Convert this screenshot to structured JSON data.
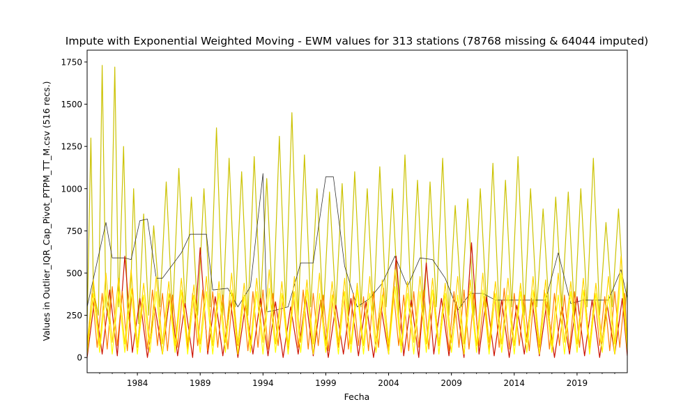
{
  "chart_data": {
    "type": "line",
    "title": "Impute with Exponential Weighted Moving - EWM values for 313 stations (78768 missing & 64044 imputed)",
    "xlabel": "Fecha",
    "ylabel": "Values in Outlier_IQR_Cap_Pivot_PTPM_TT_M.csv (516 recs.)",
    "xlim": [
      1980.0,
      2023.0
    ],
    "ylim": [
      -90,
      1820
    ],
    "x_ticks": [
      1984,
      1989,
      1994,
      1999,
      2004,
      2009,
      2014,
      2019
    ],
    "x_tick_labels": [
      "1984",
      "1989",
      "1994",
      "1999",
      "2004",
      "2009",
      "2014",
      "2019"
    ],
    "y_ticks": [
      0,
      250,
      500,
      750,
      1000,
      1250,
      1500,
      1750
    ],
    "y_tick_labels": [
      "0",
      "250",
      "500",
      "750",
      "1000",
      "1250",
      "1500",
      "1750"
    ],
    "grid": false,
    "legend": "none",
    "colormap": [
      "#000000",
      "#cc1100",
      "#ff7f00",
      "#ffd500",
      "#ffff00",
      "#cbc200"
    ],
    "series": [
      {
        "color": "#cbc200",
        "x": [
          1980.0,
          1980.3,
          1980.5,
          1980.9,
          1981.2,
          1981.5,
          1981.8,
          1982.2,
          1982.5,
          1982.9,
          1983.2,
          1983.4,
          1983.7,
          1984.1,
          1984.5,
          1984.9,
          1985.3,
          1985.8,
          1986.3,
          1986.8,
          1987.3,
          1987.8,
          1988.3,
          1988.8,
          1989.3,
          1989.8,
          1990.3,
          1990.8,
          1991.3,
          1991.8,
          1992.3,
          1992.8,
          1993.3,
          1993.8,
          1994.3,
          1994.8,
          1995.3,
          1995.8,
          1996.3,
          1996.8,
          1997.3,
          1997.8,
          1998.3,
          1998.8,
          1999.3,
          1999.8,
          2000.3,
          2000.8,
          2001.3,
          2001.8,
          2002.3,
          2002.8,
          2003.3,
          2003.8,
          2004.3,
          2004.8,
          2005.3,
          2005.8,
          2006.3,
          2006.8,
          2007.3,
          2007.8,
          2008.3,
          2008.8,
          2009.3,
          2009.8,
          2010.3,
          2010.8,
          2011.3,
          2011.8,
          2012.3,
          2012.8,
          2013.3,
          2013.8,
          2014.3,
          2014.8,
          2015.3,
          2015.8,
          2016.3,
          2016.8,
          2017.3,
          2017.8,
          2018.3,
          2018.8,
          2019.3,
          2019.8,
          2020.3,
          2020.8,
          2021.3,
          2021.8,
          2022.3,
          2022.8,
          2023.0
        ],
        "y": [
          200,
          1300,
          400,
          250,
          1730,
          300,
          200,
          1720,
          300,
          1250,
          300,
          200,
          1000,
          200,
          850,
          250,
          780,
          300,
          1040,
          250,
          1120,
          300,
          950,
          250,
          1000,
          300,
          1360,
          250,
          1180,
          300,
          1100,
          250,
          1190,
          300,
          1060,
          250,
          1310,
          300,
          1450,
          250,
          1200,
          300,
          1000,
          250,
          980,
          300,
          1030,
          250,
          1100,
          300,
          1000,
          250,
          1130,
          300,
          1000,
          250,
          1200,
          300,
          1050,
          250,
          1040,
          300,
          1180,
          250,
          900,
          300,
          940,
          250,
          1000,
          300,
          1150,
          250,
          1050,
          300,
          1190,
          250,
          1000,
          300,
          880,
          250,
          950,
          300,
          980,
          250,
          1000,
          300,
          1180,
          250,
          800,
          300,
          880,
          250,
          450
        ]
      },
      {
        "color": "#333333",
        "x": [
          1980.0,
          1981.5,
          1982.0,
          1982.1,
          1983.0,
          1983.5,
          1984.2,
          1984.8,
          1985.5,
          1986.0,
          1987.5,
          1988.2,
          1989.5,
          1990.0,
          1991.2,
          1992.0,
          1993.0,
          1994.0,
          1994.3,
          1995.0,
          1996.0,
          1997.0,
          1998.0,
          1999.0,
          1999.6,
          2000.5,
          2001.5,
          2002.5,
          2003.5,
          2004.5,
          2005.5,
          2006.5,
          2007.5,
          2008.5,
          2009.5,
          2010.5,
          2011.5,
          2012.5,
          2013.5,
          2014.5,
          2015.5,
          2016.5,
          2017.5,
          2018.5,
          2019.5,
          2020.5,
          2021.5,
          2022.5,
          2023.0
        ],
        "y": [
          300,
          800,
          590,
          590,
          590,
          580,
          810,
          820,
          470,
          470,
          620,
          730,
          730,
          400,
          410,
          300,
          420,
          1090,
          270,
          280,
          300,
          560,
          560,
          1070,
          1070,
          540,
          300,
          350,
          440,
          600,
          420,
          590,
          580,
          470,
          280,
          380,
          380,
          340,
          340,
          340,
          340,
          340,
          620,
          320,
          340,
          340,
          340,
          520,
          350
        ]
      },
      {
        "color": "#cc1100",
        "x": [
          1980.0,
          1980.6,
          1981.2,
          1981.8,
          1982.4,
          1983.0,
          1983.6,
          1984.2,
          1984.8,
          1985.4,
          1986.0,
          1986.6,
          1987.2,
          1987.8,
          1988.4,
          1989.0,
          1989.6,
          1990.2,
          1990.8,
          1991.4,
          1992.0,
          1992.6,
          1993.2,
          1993.8,
          1994.4,
          1995.0,
          1995.6,
          1996.2,
          1996.8,
          1997.4,
          1998.0,
          1998.6,
          1999.2,
          1999.8,
          2000.4,
          2001.0,
          2001.6,
          2002.2,
          2002.8,
          2003.4,
          2004.0,
          2004.6,
          2005.2,
          2005.8,
          2006.4,
          2007.0,
          2007.6,
          2008.2,
          2008.8,
          2009.4,
          2010.0,
          2010.6,
          2011.2,
          2011.8,
          2012.4,
          2013.0,
          2013.6,
          2014.2,
          2014.8,
          2015.4,
          2016.0,
          2016.6,
          2017.2,
          2017.8,
          2018.4,
          2019.0,
          2019.6,
          2020.2,
          2020.8,
          2021.4,
          2022.0,
          2022.6,
          2023.0
        ],
        "y": [
          0,
          350,
          20,
          400,
          10,
          600,
          30,
          350,
          0,
          300,
          20,
          380,
          10,
          320,
          0,
          650,
          20,
          360,
          10,
          340,
          0,
          310,
          20,
          350,
          10,
          330,
          0,
          300,
          20,
          360,
          10,
          340,
          0,
          310,
          20,
          350,
          10,
          330,
          0,
          300,
          20,
          600,
          10,
          340,
          0,
          560,
          20,
          350,
          10,
          330,
          0,
          680,
          20,
          360,
          10,
          340,
          0,
          310,
          20,
          350,
          10,
          330,
          0,
          300,
          20,
          360,
          10,
          340,
          0,
          310,
          20,
          350,
          10
        ]
      },
      {
        "color": "#ff7f00",
        "x": [
          1980.0,
          1980.4,
          1980.8,
          1981.2,
          1981.6,
          1982.0,
          1982.4,
          1982.8,
          1983.2,
          1983.6,
          1984.0,
          1984.4,
          1984.8,
          1985.2,
          1985.6,
          1986.0,
          1986.4,
          1986.8,
          1987.2,
          1987.6,
          1988.0,
          1988.4,
          1988.8,
          1989.2,
          1989.6,
          1990.0,
          1990.4,
          1990.8,
          1991.2,
          1991.6,
          1992.0,
          1992.4,
          1992.8,
          1993.2,
          1993.6,
          1994.0,
          1994.4,
          1994.8,
          1995.2,
          1995.6,
          1996.0,
          1996.4,
          1996.8,
          1997.2,
          1997.6,
          1998.0,
          1998.4,
          1998.8,
          1999.2,
          1999.6,
          2000.0,
          2000.4,
          2000.8,
          2001.2,
          2001.6,
          2002.0,
          2002.4,
          2002.8,
          2003.2,
          2003.6,
          2004.0,
          2004.4,
          2004.8,
          2005.2,
          2005.6,
          2006.0,
          2006.4,
          2006.8,
          2007.2,
          2007.6,
          2008.0,
          2008.4,
          2008.8,
          2009.2,
          2009.6,
          2010.0,
          2010.4,
          2010.8,
          2011.2,
          2011.6,
          2012.0,
          2012.4,
          2012.8,
          2013.2,
          2013.6,
          2014.0,
          2014.4,
          2014.8,
          2015.2,
          2015.6,
          2016.0,
          2016.4,
          2016.8,
          2017.2,
          2017.6,
          2018.0,
          2018.4,
          2018.8,
          2019.2,
          2019.6,
          2020.0,
          2020.4,
          2020.8,
          2021.2,
          2021.6,
          2022.0,
          2022.4,
          2022.8,
          2023.0
        ],
        "y": [
          40,
          390,
          60,
          380,
          50,
          420,
          70,
          390,
          40,
          410,
          60,
          360,
          50,
          400,
          70,
          380,
          40,
          370,
          60,
          390,
          50,
          380,
          70,
          400,
          40,
          390,
          60,
          370,
          50,
          380,
          70,
          360,
          40,
          390,
          60,
          400,
          50,
          380,
          70,
          370,
          40,
          390,
          60,
          400,
          50,
          380,
          70,
          370,
          40,
          390,
          60,
          400,
          50,
          380,
          70,
          360,
          40,
          390,
          60,
          410,
          50,
          380,
          70,
          370,
          40,
          390,
          60,
          400,
          50,
          380,
          70,
          370,
          40,
          390,
          60,
          400,
          50,
          380,
          70,
          360,
          40,
          390,
          60,
          410,
          50,
          380,
          70,
          370,
          40,
          390,
          60,
          400,
          50,
          380,
          70,
          370,
          40,
          390,
          60,
          400,
          50,
          380,
          70,
          360,
          40,
          390,
          60,
          380,
          60
        ]
      },
      {
        "color": "#ffd500",
        "x": [
          1980.0,
          1980.5,
          1981.0,
          1981.5,
          1982.0,
          1982.5,
          1983.0,
          1983.5,
          1984.0,
          1984.5,
          1985.0,
          1985.5,
          1986.0,
          1986.5,
          1987.0,
          1987.5,
          1988.0,
          1988.5,
          1989.0,
          1989.5,
          1990.0,
          1990.5,
          1991.0,
          1991.5,
          1992.0,
          1992.5,
          1993.0,
          1993.5,
          1994.0,
          1994.5,
          1995.0,
          1995.5,
          1996.0,
          1996.5,
          1997.0,
          1997.5,
          1998.0,
          1998.5,
          1999.0,
          1999.5,
          2000.0,
          2000.5,
          2001.0,
          2001.5,
          2002.0,
          2002.5,
          2003.0,
          2003.5,
          2004.0,
          2004.5,
          2005.0,
          2005.5,
          2006.0,
          2006.5,
          2007.0,
          2007.5,
          2008.0,
          2008.5,
          2009.0,
          2009.5,
          2010.0,
          2010.5,
          2011.0,
          2011.5,
          2012.0,
          2012.5,
          2013.0,
          2013.5,
          2014.0,
          2014.5,
          2015.0,
          2015.5,
          2016.0,
          2016.5,
          2017.0,
          2017.5,
          2018.0,
          2018.5,
          2019.0,
          2019.5,
          2020.0,
          2020.5,
          2021.0,
          2021.5,
          2022.0,
          2022.5,
          2023.0
        ],
        "y": [
          80,
          460,
          70,
          500,
          90,
          470,
          80,
          520,
          70,
          440,
          90,
          480,
          80,
          450,
          70,
          470,
          90,
          430,
          80,
          480,
          70,
          450,
          90,
          500,
          80,
          440,
          70,
          470,
          90,
          520,
          80,
          450,
          70,
          480,
          90,
          460,
          80,
          500,
          70,
          450,
          90,
          470,
          80,
          440,
          70,
          480,
          90,
          460,
          80,
          520,
          70,
          450,
          90,
          480,
          80,
          470,
          70,
          440,
          90,
          480,
          80,
          460,
          70,
          500,
          90,
          450,
          80,
          470,
          70,
          440,
          90,
          480,
          80,
          460,
          70,
          500,
          90,
          450,
          80,
          470,
          70,
          440,
          90,
          480,
          80,
          600,
          90
        ]
      },
      {
        "color": "#ffff00",
        "x": [
          1980.0,
          1980.5,
          1981.0,
          1981.5,
          1982.0,
          1982.5,
          1983.0,
          1983.5,
          1984.0,
          1984.5,
          1985.0,
          1985.5,
          1986.0,
          1986.5,
          1987.0,
          1987.5,
          1988.0,
          1988.5,
          1989.0,
          1989.5,
          1990.0,
          1990.5,
          1991.0,
          1991.5,
          1992.0,
          1992.5,
          1993.0,
          1993.5,
          1994.0,
          1994.5,
          1995.0,
          1995.5,
          1996.0,
          1996.5,
          1997.0,
          1997.5,
          1998.0,
          1998.5,
          1999.0,
          1999.5,
          2000.0,
          2000.5,
          2001.0,
          2001.5,
          2002.0,
          2002.5,
          2003.0,
          2003.5,
          2004.0,
          2004.5,
          2005.0,
          2005.5,
          2006.0,
          2006.5,
          2007.0,
          2007.5,
          2008.0,
          2008.5,
          2009.0,
          2009.5,
          2010.0,
          2010.5,
          2011.0,
          2011.5,
          2012.0,
          2012.5,
          2013.0,
          2013.5,
          2014.0,
          2014.5,
          2015.0,
          2015.5,
          2016.0,
          2016.5,
          2017.0,
          2017.5,
          2018.0,
          2018.5,
          2019.0,
          2019.5,
          2020.0,
          2020.5,
          2021.0,
          2021.5,
          2022.0,
          2022.5,
          2023.0
        ],
        "y": [
          20,
          380,
          30,
          400,
          20,
          390,
          30,
          410,
          20,
          370,
          30,
          390,
          20,
          380,
          30,
          400,
          20,
          370,
          30,
          390,
          20,
          380,
          30,
          400,
          20,
          370,
          30,
          390,
          20,
          410,
          30,
          380,
          20,
          390,
          30,
          400,
          20,
          380,
          30,
          370,
          20,
          390,
          30,
          400,
          20,
          380,
          30,
          370,
          20,
          420,
          30,
          380,
          20,
          390,
          30,
          400,
          20,
          380,
          30,
          370,
          20,
          390,
          30,
          400,
          20,
          380,
          30,
          370,
          20,
          390,
          30,
          400,
          20,
          380,
          30,
          370,
          20,
          390,
          30,
          400,
          20,
          380,
          30,
          370,
          20,
          500,
          40
        ]
      }
    ]
  }
}
